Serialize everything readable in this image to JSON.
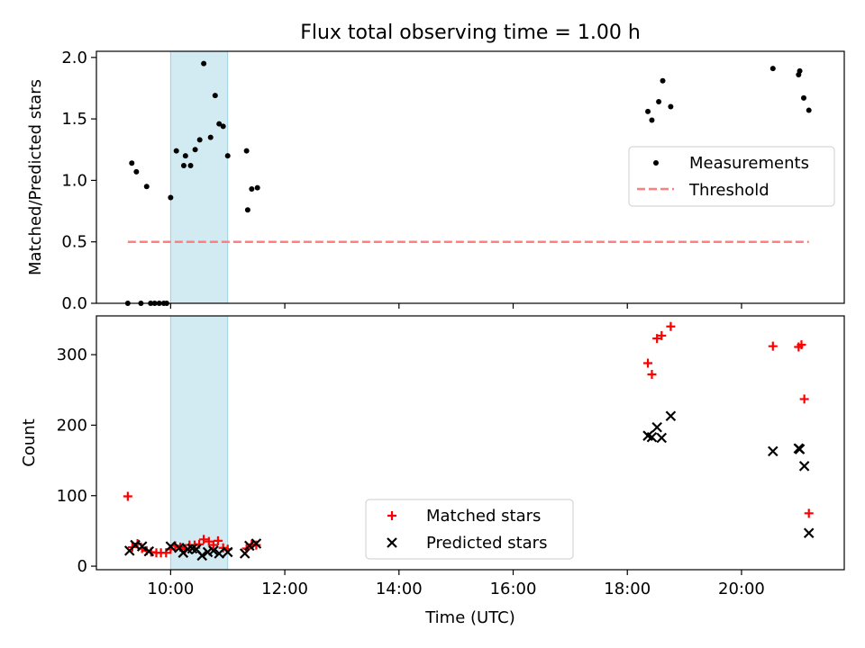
{
  "chart_data": [
    {
      "type": "scatter",
      "title": "Flux total observing time = 1.00 h",
      "xlabel": "",
      "ylabel": "Matched/Predicted stars",
      "ylim": [
        0,
        2.05
      ],
      "xlim": [
        8.7,
        21.8
      ],
      "yticks": [
        0.0,
        0.5,
        1.0,
        1.5,
        2.0
      ],
      "ytick_labels": [
        "0.0",
        "0.5",
        "1.0",
        "1.5",
        "2.0"
      ],
      "grid": false,
      "legend_position": "center-right",
      "highlight_span": {
        "x0": 10.0,
        "x1": 11.0,
        "color": "#add8e6"
      },
      "series": [
        {
          "name": "Measurements",
          "marker": "dot",
          "color": "#000000",
          "points": [
            [
              9.25,
              0.0
            ],
            [
              9.32,
              1.14
            ],
            [
              9.4,
              1.07
            ],
            [
              9.48,
              0.0
            ],
            [
              9.58,
              0.95
            ],
            [
              9.65,
              0.0
            ],
            [
              9.72,
              0.0
            ],
            [
              9.8,
              0.0
            ],
            [
              9.88,
              0.0
            ],
            [
              9.93,
              0.0
            ],
            [
              10.0,
              0.86
            ],
            [
              10.1,
              1.24
            ],
            [
              10.23,
              1.12
            ],
            [
              10.26,
              1.2
            ],
            [
              10.35,
              1.12
            ],
            [
              10.43,
              1.25
            ],
            [
              10.51,
              1.33
            ],
            [
              10.58,
              1.95
            ],
            [
              10.7,
              1.35
            ],
            [
              10.78,
              1.69
            ],
            [
              10.85,
              1.46
            ],
            [
              10.92,
              1.44
            ],
            [
              11.0,
              1.2
            ],
            [
              11.33,
              1.24
            ],
            [
              11.35,
              0.76
            ],
            [
              11.42,
              0.93
            ],
            [
              11.52,
              0.94
            ],
            [
              18.36,
              1.56
            ],
            [
              18.43,
              1.49
            ],
            [
              18.55,
              1.64
            ],
            [
              18.62,
              1.81
            ],
            [
              18.76,
              1.6
            ],
            [
              20.55,
              1.91
            ],
            [
              21.0,
              1.86
            ],
            [
              21.02,
              1.89
            ],
            [
              21.09,
              1.67
            ],
            [
              21.18,
              1.57
            ]
          ]
        },
        {
          "name": "Threshold",
          "marker": "dashed-line",
          "color": "#ff7f7f",
          "points": [
            [
              9.25,
              0.5
            ],
            [
              21.18,
              0.5
            ]
          ]
        }
      ]
    },
    {
      "type": "scatter",
      "title": "",
      "xlabel": "Time (UTC)",
      "ylabel": "Count",
      "ylim": [
        -5,
        355
      ],
      "xlim": [
        8.7,
        21.8
      ],
      "yticks": [
        0,
        100,
        200,
        300
      ],
      "ytick_labels": [
        "0",
        "100",
        "200",
        "300"
      ],
      "xticks": [
        10,
        12,
        14,
        16,
        18,
        20
      ],
      "xtick_labels": [
        "10:00",
        "12:00",
        "14:00",
        "16:00",
        "18:00",
        "20:00"
      ],
      "grid": false,
      "legend_position": "lower-center",
      "highlight_span": {
        "x0": 10.0,
        "x1": 11.0,
        "color": "#add8e6"
      },
      "series": [
        {
          "name": "Matched stars",
          "marker": "plus",
          "color": "#ff0000",
          "points": [
            [
              9.25,
              99
            ],
            [
              9.33,
              27
            ],
            [
              9.42,
              32
            ],
            [
              9.5,
              25
            ],
            [
              9.58,
              22
            ],
            [
              9.66,
              20
            ],
            [
              9.75,
              19
            ],
            [
              9.83,
              19
            ],
            [
              9.92,
              19
            ],
            [
              10.0,
              24
            ],
            [
              10.08,
              29
            ],
            [
              10.17,
              27
            ],
            [
              10.25,
              24
            ],
            [
              10.33,
              30
            ],
            [
              10.42,
              30
            ],
            [
              10.5,
              31
            ],
            [
              10.58,
              38
            ],
            [
              10.67,
              35
            ],
            [
              10.75,
              30
            ],
            [
              10.83,
              36
            ],
            [
              10.92,
              26
            ],
            [
              11.0,
              24
            ],
            [
              11.33,
              25
            ],
            [
              11.42,
              31
            ],
            [
              11.5,
              30
            ],
            [
              18.36,
              288
            ],
            [
              18.43,
              272
            ],
            [
              18.52,
              323
            ],
            [
              18.6,
              327
            ],
            [
              18.76,
              340
            ],
            [
              20.55,
              312
            ],
            [
              21.0,
              311
            ],
            [
              21.05,
              314
            ],
            [
              21.1,
              237
            ],
            [
              21.18,
              75
            ]
          ]
        },
        {
          "name": "Predicted stars",
          "marker": "x",
          "color": "#000000",
          "points": [
            [
              9.28,
              22
            ],
            [
              9.38,
              30
            ],
            [
              9.5,
              28
            ],
            [
              9.62,
              21
            ],
            [
              10.0,
              28
            ],
            [
              10.15,
              26
            ],
            [
              10.22,
              19
            ],
            [
              10.3,
              24
            ],
            [
              10.38,
              25
            ],
            [
              10.45,
              24
            ],
            [
              10.55,
              15
            ],
            [
              10.65,
              20
            ],
            [
              10.75,
              22
            ],
            [
              10.85,
              18
            ],
            [
              11.0,
              20
            ],
            [
              11.3,
              18
            ],
            [
              11.38,
              29
            ],
            [
              11.5,
              32
            ],
            [
              18.36,
              185
            ],
            [
              18.43,
              183
            ],
            [
              18.52,
              197
            ],
            [
              18.6,
              182
            ],
            [
              18.76,
              213
            ],
            [
              20.55,
              163
            ],
            [
              21.0,
              167
            ],
            [
              21.02,
              166
            ],
            [
              21.1,
              142
            ],
            [
              21.18,
              47
            ]
          ]
        }
      ]
    }
  ]
}
